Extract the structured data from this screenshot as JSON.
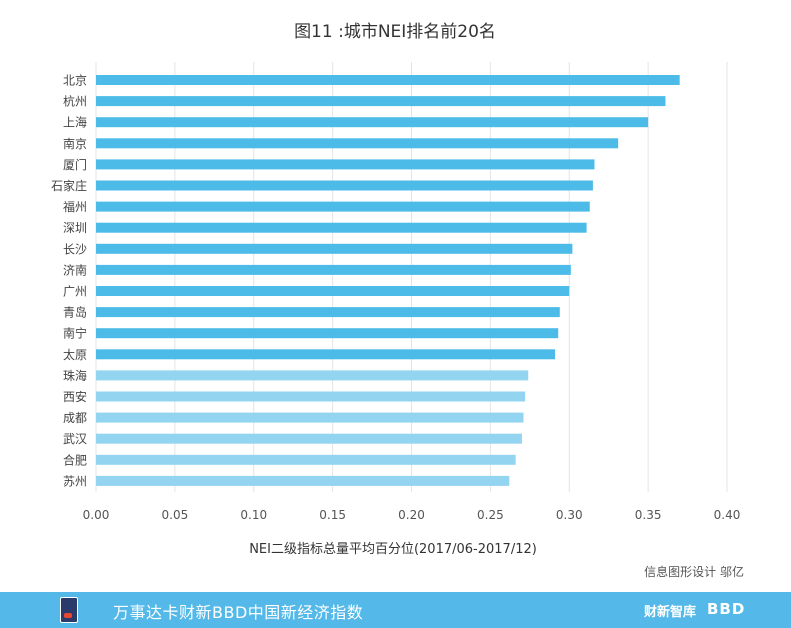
{
  "chart_data": {
    "type": "bar",
    "orientation": "horizontal",
    "title": "图11 :城市NEI排名前20名",
    "xlabel": "NEI二级指标总量平均百分位(2017/06-2017/12)",
    "ylabel": "",
    "xlim": [
      0,
      0.4
    ],
    "x_ticks": [
      "0.00",
      "0.05",
      "0.10",
      "0.15",
      "0.20",
      "0.25",
      "0.30",
      "0.35",
      "0.40"
    ],
    "grid": "vertical",
    "categories": [
      "北京",
      "杭州",
      "上海",
      "南京",
      "厦门",
      "石家庄",
      "福州",
      "深圳",
      "长沙",
      "济南",
      "广州",
      "青岛",
      "南宁",
      "太原",
      "珠海",
      "西安",
      "成都",
      "武汉",
      "合肥",
      "苏州"
    ],
    "values": [
      0.37,
      0.361,
      0.35,
      0.331,
      0.316,
      0.315,
      0.313,
      0.311,
      0.302,
      0.301,
      0.3,
      0.294,
      0.293,
      0.291,
      0.274,
      0.272,
      0.271,
      0.27,
      0.266,
      0.262
    ],
    "colors": [
      "#4cbbe8",
      "#4cbbe8",
      "#4cbbe8",
      "#4cbbe8",
      "#4cbbe8",
      "#4cbbe8",
      "#4cbbe8",
      "#4cbbe8",
      "#4cbbe8",
      "#4cbbe8",
      "#4cbbe8",
      "#4cbbe8",
      "#4cbbe8",
      "#4cbbe8",
      "#93d4f0",
      "#93d4f0",
      "#93d4f0",
      "#93d4f0",
      "#93d4f0",
      "#93d4f0"
    ],
    "credit": "信息图形设计 邬亿"
  },
  "footer": {
    "text": "万事达卡财新BBD中国新经济指数",
    "brand1": "财新智库",
    "brand2": "BBD",
    "color": "#54b9e8"
  }
}
